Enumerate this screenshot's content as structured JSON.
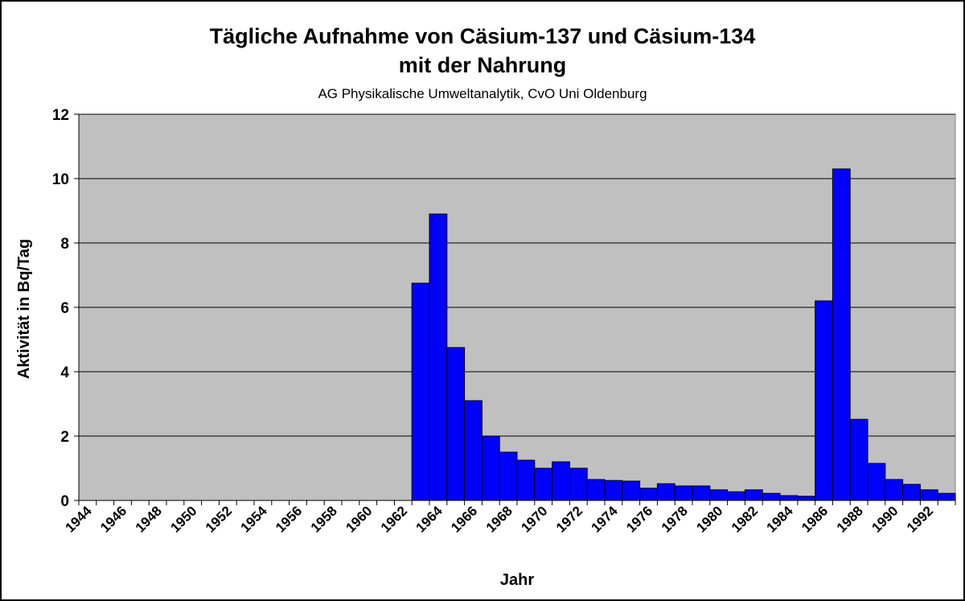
{
  "chart_data": {
    "type": "bar",
    "title": "Tägliche Aufnahme von Cäsium-137 und Cäsium-134",
    "title_line2": "mit der Nahrung",
    "subtitle": "AG Physikalische Umweltanalytik, CvO Uni Oldenburg",
    "xlabel": "Jahr",
    "ylabel": "Aktivität in Bq/Tag",
    "ylim": [
      0,
      12
    ],
    "yticks": [
      0,
      2,
      4,
      6,
      8,
      10,
      12
    ],
    "grid": true,
    "legend": "none",
    "bar_color": "#0000FF",
    "plot_background": "#C0C0C0",
    "x_tick_labels": [
      "1944",
      "1946",
      "1948",
      "1950",
      "1952",
      "1954",
      "1956",
      "1958",
      "1960",
      "1962",
      "1964",
      "1966",
      "1968",
      "1970",
      "1972",
      "1974",
      "1976",
      "1978",
      "1980",
      "1982",
      "1984",
      "1986",
      "1988",
      "1990",
      "1992"
    ],
    "categories": [
      "1944",
      "1945",
      "1946",
      "1947",
      "1948",
      "1949",
      "1950",
      "1951",
      "1952",
      "1953",
      "1954",
      "1955",
      "1956",
      "1957",
      "1958",
      "1959",
      "1960",
      "1961",
      "1962",
      "1963",
      "1964",
      "1965",
      "1966",
      "1967",
      "1968",
      "1969",
      "1970",
      "1971",
      "1972",
      "1973",
      "1974",
      "1975",
      "1976",
      "1977",
      "1978",
      "1979",
      "1980",
      "1981",
      "1982",
      "1983",
      "1984",
      "1985",
      "1986",
      "1987",
      "1988",
      "1989",
      "1990",
      "1991",
      "1992",
      "1993"
    ],
    "values": [
      0,
      0,
      0,
      0,
      0,
      0,
      0,
      0,
      0,
      0,
      0,
      0,
      0,
      0,
      0,
      0,
      0,
      0,
      0,
      6.75,
      8.9,
      4.75,
      3.1,
      2.0,
      1.5,
      1.25,
      1.0,
      1.2,
      1.0,
      0.65,
      0.62,
      0.6,
      0.38,
      0.52,
      0.45,
      0.45,
      0.33,
      0.27,
      0.33,
      0.22,
      0.15,
      0.13,
      6.2,
      10.3,
      2.52,
      1.15,
      0.65,
      0.5,
      0.33,
      0.22
    ]
  }
}
